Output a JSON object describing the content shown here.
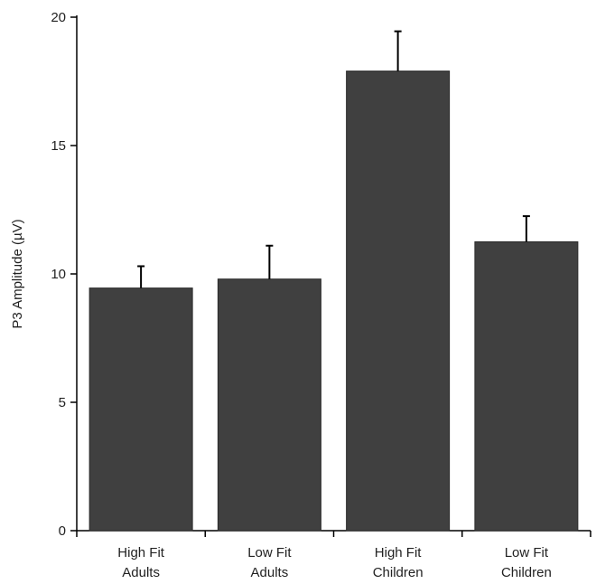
{
  "chart_data": {
    "type": "bar",
    "title": "",
    "xlabel": "",
    "ylabel": "P3 Amplitude (µV)",
    "ylim": [
      0,
      20
    ],
    "yticks": [
      0,
      5,
      10,
      15,
      20
    ],
    "categories": [
      [
        "High Fit",
        "Adults"
      ],
      [
        "Low Fit",
        "Adults"
      ],
      [
        "High Fit",
        "Children"
      ],
      [
        "Low Fit",
        "Children"
      ]
    ],
    "values": [
      9.45,
      9.8,
      17.9,
      11.25
    ],
    "error_plus": [
      0.85,
      1.3,
      1.55,
      1.0
    ],
    "bar_color": "#404040",
    "axis_color": "#000000",
    "grid": false,
    "legend": "none"
  }
}
